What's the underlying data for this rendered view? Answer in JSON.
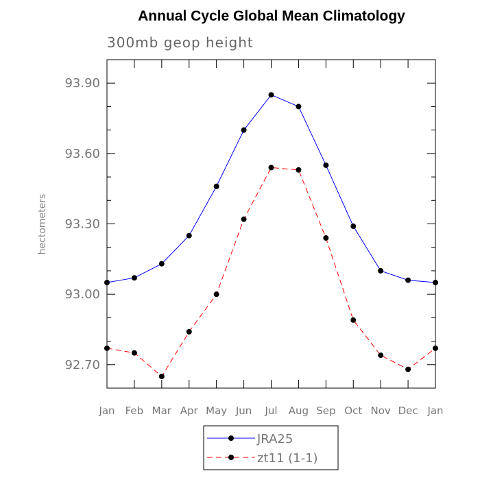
{
  "chart_data": {
    "type": "line",
    "title": "Annual Cycle Global Mean Climatology",
    "subtitle": "300mb geop height",
    "ylabel": "hectometers",
    "xlabel": "",
    "ylim": [
      92.6,
      94.0
    ],
    "yticks": [
      "93.90",
      "93.60",
      "93.30",
      "93.00",
      "92.70"
    ],
    "yticks_values": [
      93.9,
      93.6,
      93.3,
      93.0,
      92.7
    ],
    "categories": [
      "Jan",
      "Feb",
      "Mar",
      "Apr",
      "May",
      "Jun",
      "Jul",
      "Aug",
      "Sep",
      "Oct",
      "Nov",
      "Dec",
      "Jan"
    ],
    "grid": false,
    "legend_position": "bottom-center",
    "series": [
      {
        "name": "JRA25",
        "color": "#0000ff",
        "dash": "solid",
        "values": [
          93.05,
          93.07,
          93.13,
          93.25,
          93.46,
          93.7,
          93.85,
          93.8,
          93.55,
          93.29,
          93.1,
          93.06,
          93.05
        ]
      },
      {
        "name": "zt11 (1-1)",
        "color": "#ff0000",
        "dash": "dashed",
        "values": [
          92.77,
          92.75,
          92.65,
          92.84,
          93.0,
          93.32,
          93.54,
          93.53,
          93.24,
          92.89,
          92.74,
          92.68,
          92.77
        ]
      }
    ]
  }
}
